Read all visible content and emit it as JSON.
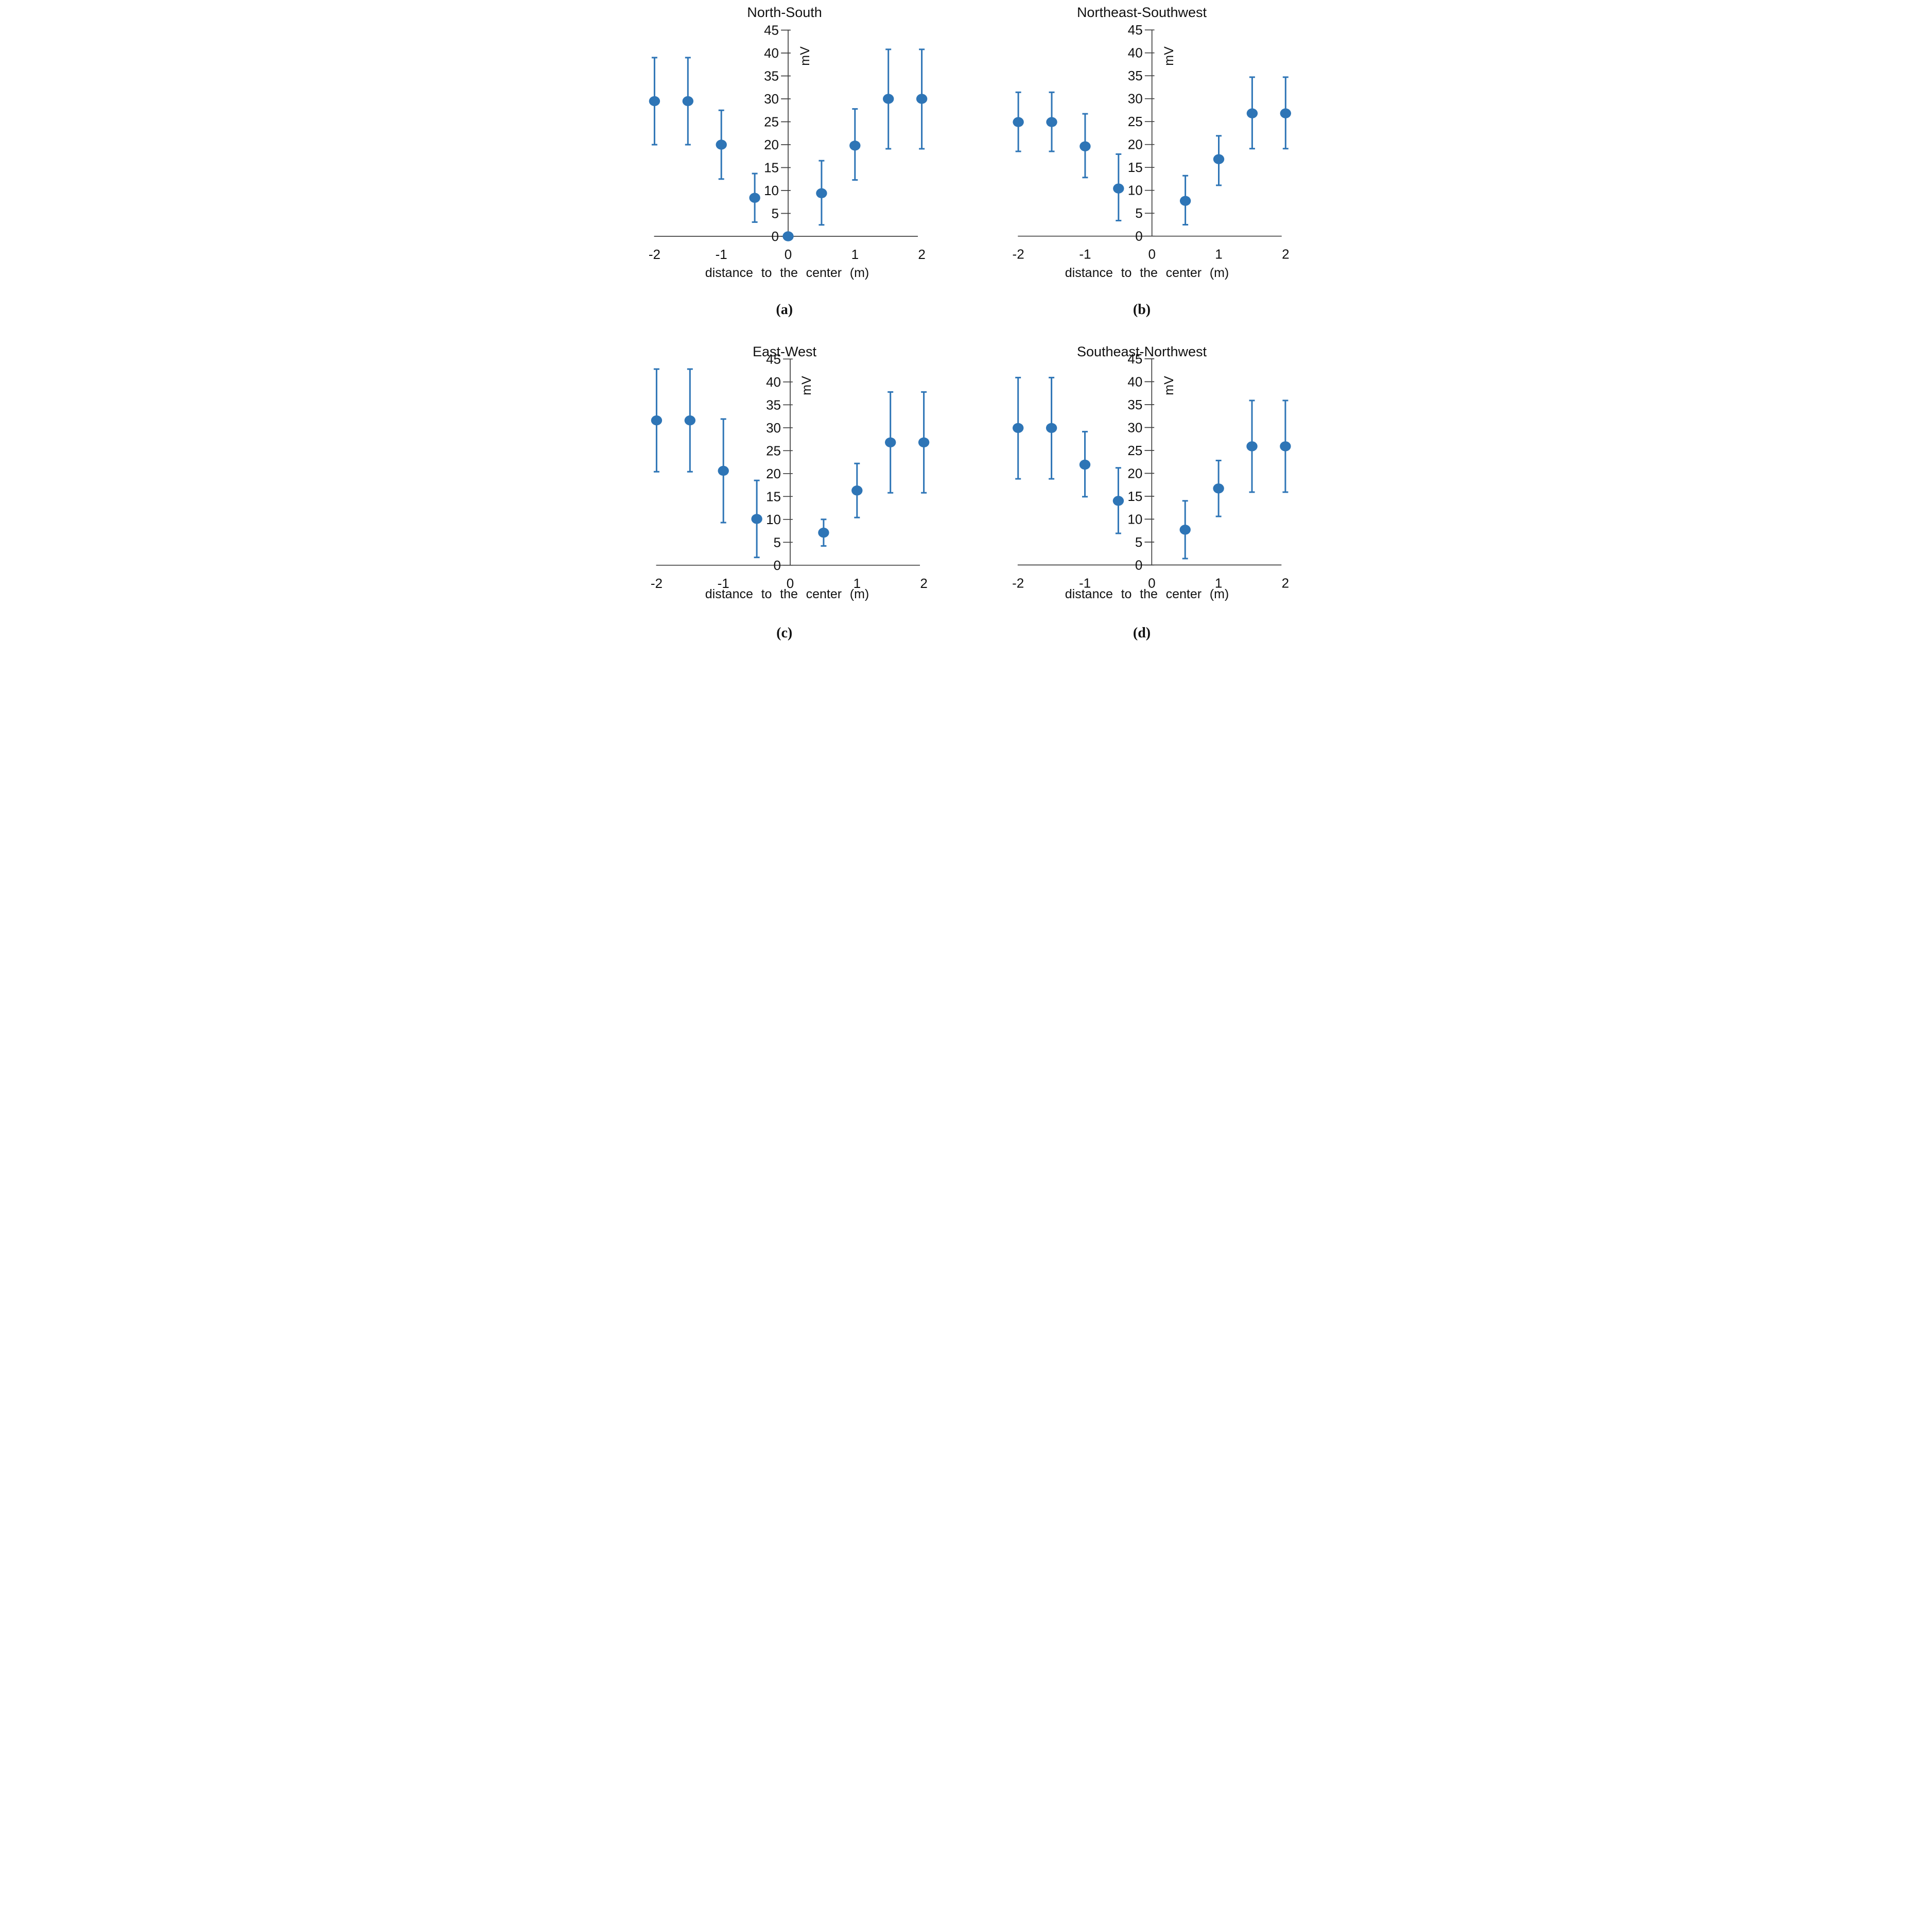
{
  "figure": {
    "background": "#ffffff",
    "point_color": "#2E75B6",
    "axis_color": "#404040",
    "text_color": "#111111"
  },
  "chart_data": [
    {
      "type": "scatter",
      "title": "North-South",
      "panel_label": "(a)",
      "xlabel": "distance to the center (m)",
      "ylabel": "mV",
      "xlim": [
        -2.3,
        2.15
      ],
      "ylim": [
        0,
        45
      ],
      "xticks": [
        -2,
        -1,
        0,
        1,
        2
      ],
      "yticks": [
        0,
        5,
        10,
        15,
        20,
        25,
        30,
        35,
        40,
        45
      ],
      "grid": false,
      "legend": false,
      "x": [
        -2,
        -1.5,
        -1,
        -0.5,
        0,
        0.5,
        1,
        1.5,
        2
      ],
      "y": [
        29.5,
        29.5,
        20.0,
        8.4,
        0,
        9.4,
        19.8,
        30.0,
        30.0
      ],
      "y_low": [
        20.0,
        20.0,
        12.5,
        3.1,
        null,
        2.5,
        12.3,
        19.1,
        19.1
      ],
      "y_high": [
        39.0,
        39.0,
        27.5,
        13.7,
        null,
        16.5,
        27.8,
        40.8,
        40.8
      ]
    },
    {
      "type": "scatter",
      "title": "Northeast-Southwest",
      "panel_label": "(b)",
      "xlabel": "distance to the center (m)",
      "ylabel": "mV",
      "xlim": [
        -2.3,
        2.15
      ],
      "ylim": [
        0,
        45
      ],
      "xticks": [
        -2,
        -1,
        0,
        1,
        2
      ],
      "yticks": [
        0,
        5,
        10,
        15,
        20,
        25,
        30,
        35,
        40,
        45
      ],
      "grid": false,
      "legend": false,
      "x": [
        -2,
        -1.5,
        -1,
        -0.5,
        0.5,
        1,
        1.5,
        2
      ],
      "y": [
        24.9,
        24.9,
        19.6,
        10.4,
        7.7,
        16.8,
        26.8,
        26.8
      ],
      "y_low": [
        18.5,
        18.5,
        12.8,
        3.4,
        2.5,
        11.1,
        19.1,
        19.1
      ],
      "y_high": [
        31.4,
        31.4,
        26.7,
        17.9,
        13.2,
        21.9,
        34.7,
        34.7
      ]
    },
    {
      "type": "scatter",
      "title": "East-West",
      "panel_label": "(c)",
      "xlabel": "distance to the center (m)",
      "ylabel": "mV",
      "xlim": [
        -2.3,
        2.15
      ],
      "ylim": [
        0,
        45
      ],
      "xticks": [
        -2,
        -1,
        0,
        1,
        2
      ],
      "yticks": [
        0,
        5,
        10,
        15,
        20,
        25,
        30,
        35,
        40,
        45
      ],
      "grid": false,
      "legend": false,
      "x": [
        -2,
        -1.5,
        -1,
        -0.5,
        0.5,
        1,
        1.5,
        2
      ],
      "y": [
        31.6,
        31.6,
        20.6,
        10.1,
        7.1,
        16.3,
        26.8,
        26.8
      ],
      "y_low": [
        20.4,
        20.4,
        9.3,
        1.7,
        4.2,
        10.4,
        15.8,
        15.8
      ],
      "y_high": [
        42.8,
        42.8,
        31.9,
        18.5,
        10.0,
        22.2,
        37.8,
        37.8
      ]
    },
    {
      "type": "scatter",
      "title": "Southeast-Northwest",
      "panel_label": "(d)",
      "xlabel": "distance to the center (m)",
      "ylabel": "mV",
      "xlim": [
        -2.3,
        2.15
      ],
      "ylim": [
        0,
        45
      ],
      "xticks": [
        -2,
        -1,
        0,
        1,
        2
      ],
      "yticks": [
        0,
        5,
        10,
        15,
        20,
        25,
        30,
        35,
        40,
        45
      ],
      "grid": false,
      "legend": false,
      "x": [
        -2,
        -1.5,
        -1,
        -0.5,
        0.5,
        1,
        1.5,
        2
      ],
      "y": [
        29.9,
        29.9,
        21.9,
        14.0,
        7.7,
        16.7,
        25.9,
        25.9
      ],
      "y_low": [
        18.8,
        18.8,
        14.9,
        6.9,
        1.4,
        10.6,
        15.9,
        15.9
      ],
      "y_high": [
        40.9,
        40.9,
        29.1,
        21.2,
        14.0,
        22.8,
        35.9,
        35.9
      ]
    }
  ]
}
